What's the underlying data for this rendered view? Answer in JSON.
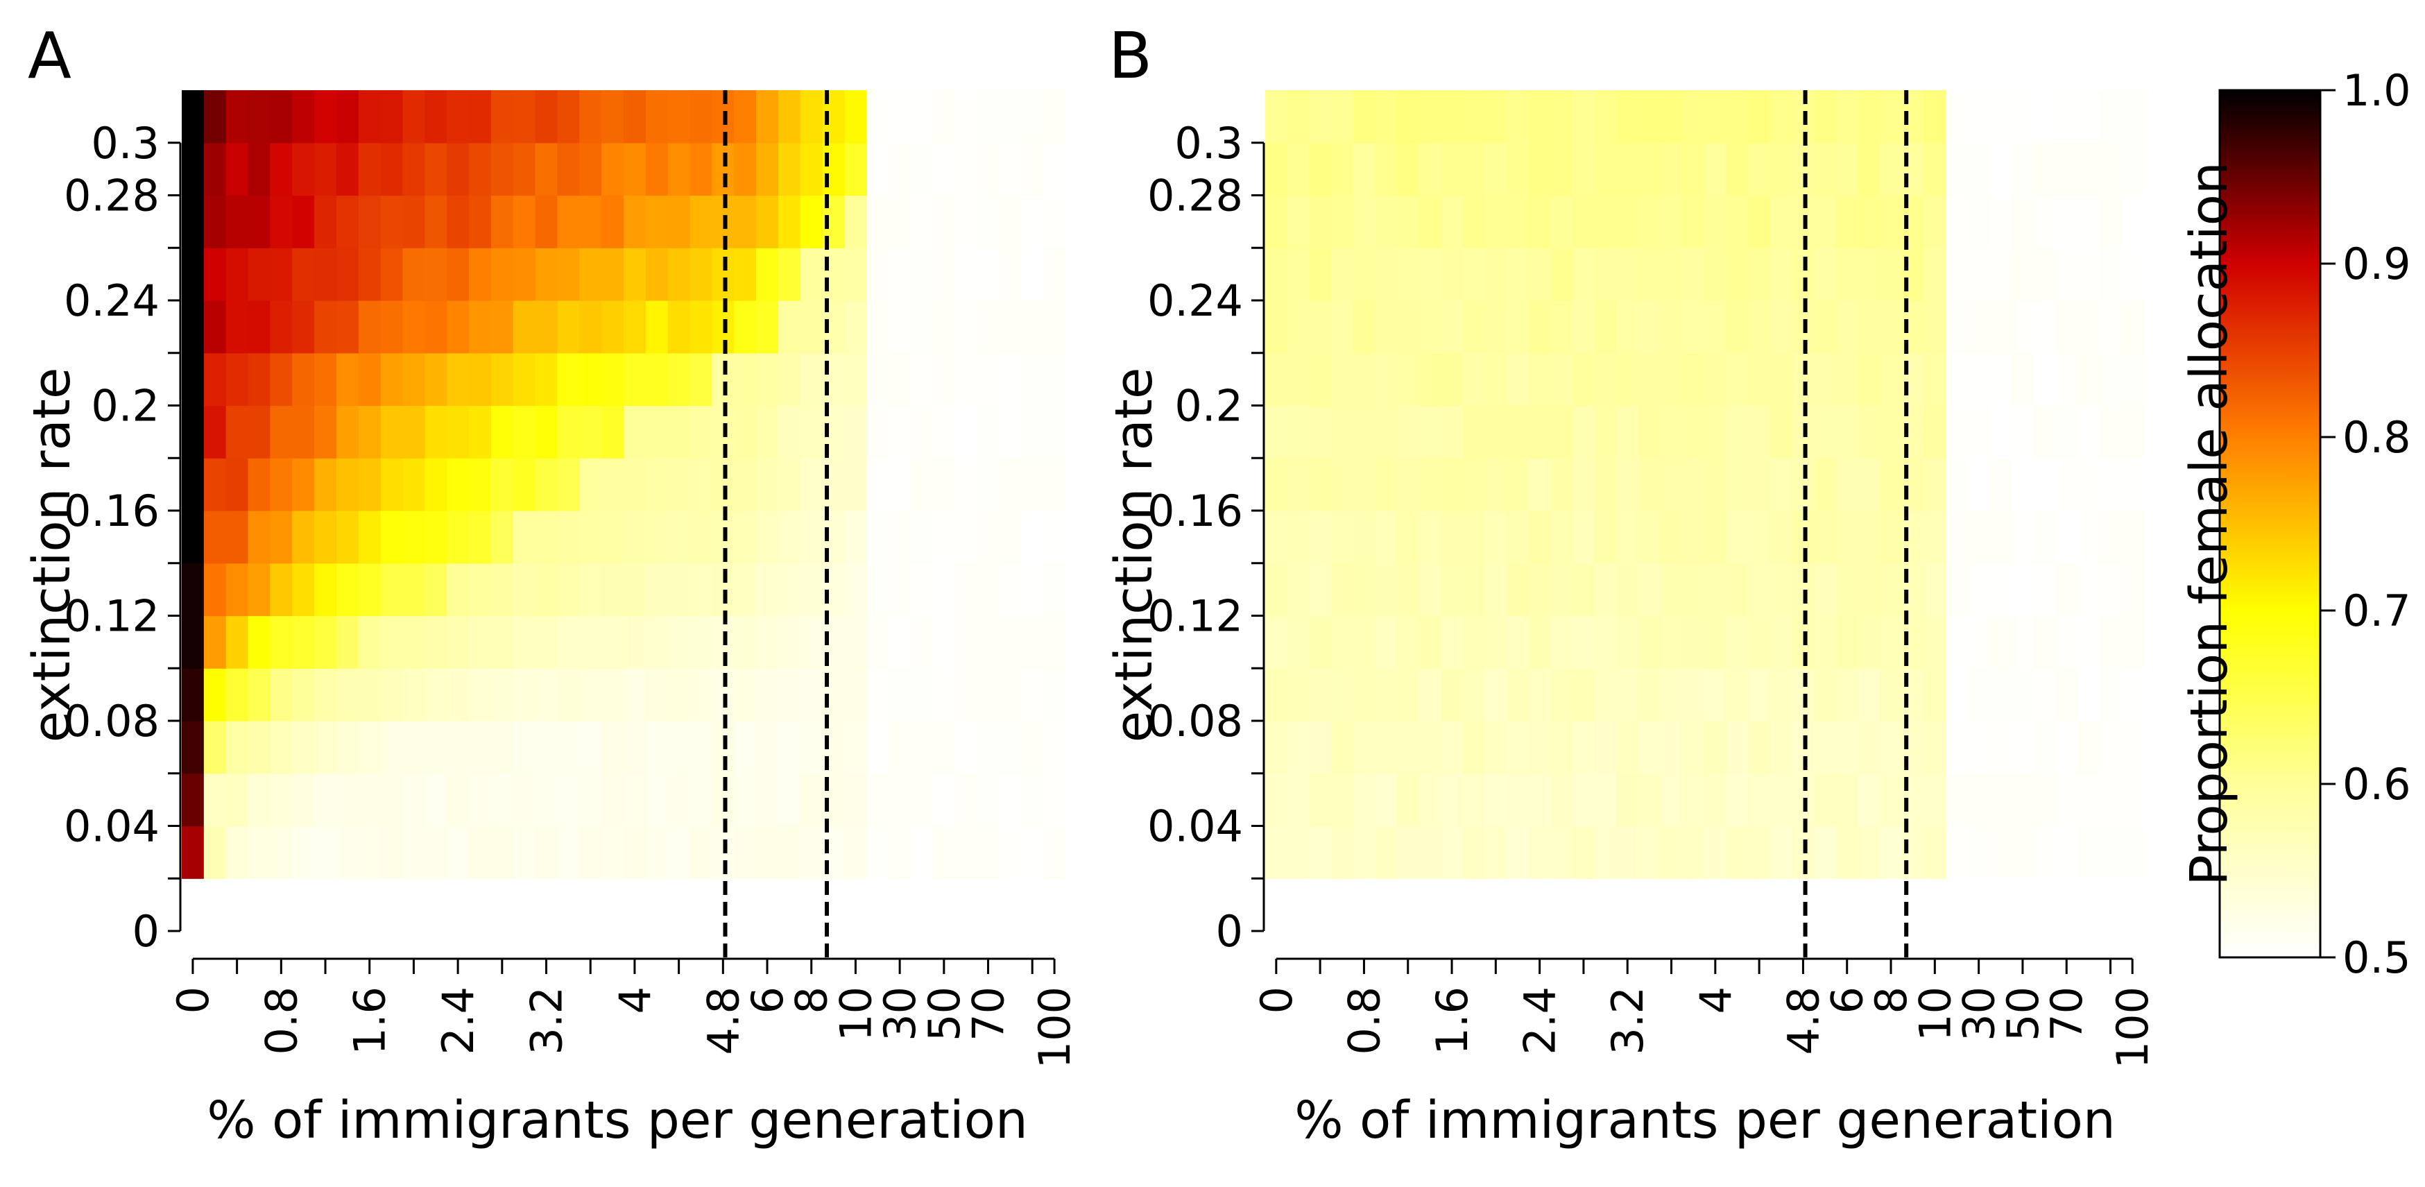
{
  "panels": [
    {
      "label": "A",
      "ylabel": "extinction rate",
      "xlabel": "% of immigrants per generation",
      "yticks": [
        "0",
        "0.04",
        "0.08",
        "0.12",
        "0.16",
        "0.2",
        "0.24",
        "0.28",
        "0.3"
      ],
      "xticks": [
        "0",
        "0.8",
        "1.6",
        "2.4",
        "3.2",
        "4",
        "4.8",
        "6",
        "8",
        "10",
        "30",
        "50",
        "70",
        "100"
      ]
    },
    {
      "label": "B",
      "ylabel": "extinction rate",
      "xlabel": "% of immigrants per generation",
      "yticks": [
        "0",
        "0.04",
        "0.08",
        "0.12",
        "0.16",
        "0.2",
        "0.24",
        "0.28",
        "0.3"
      ],
      "xticks": [
        "0",
        "0.8",
        "1.6",
        "2.4",
        "3.2",
        "4",
        "4.8",
        "6",
        "8",
        "10",
        "30",
        "50",
        "70",
        "100"
      ]
    }
  ],
  "colorbar": {
    "label": "Proportion female allocation",
    "ticks": [
      "1.0",
      "0.9",
      "0.8",
      "0.7",
      "0.6",
      "0.5"
    ],
    "range": [
      0.5,
      1.0
    ]
  },
  "colors": {
    "dashed_line": "#000000",
    "axis": "#000000"
  },
  "chart_data": [
    {
      "type": "heatmap",
      "panel": "A",
      "title": "",
      "xlabel": "% of immigrants per generation",
      "ylabel": "extinction rate",
      "x": [
        0,
        0.2,
        0.4,
        0.6,
        0.8,
        1.0,
        1.2,
        1.4,
        1.6,
        1.8,
        2.0,
        2.2,
        2.4,
        2.6,
        2.8,
        3.0,
        3.2,
        3.4,
        3.6,
        3.8,
        4.0,
        4.2,
        4.4,
        4.6,
        4.8,
        5,
        6,
        7,
        8,
        9,
        10,
        20,
        30,
        40,
        50,
        60,
        70,
        80,
        90,
        100
      ],
      "y": [
        0.02,
        0.04,
        0.06,
        0.08,
        0.1,
        0.12,
        0.14,
        0.16,
        0.18,
        0.2,
        0.22,
        0.24,
        0.26,
        0.28,
        0.3
      ],
      "colorscale_range": [
        0.5,
        1.0
      ],
      "vlines_x": [
        4.5,
        9.5
      ],
      "values_model": {
        "first_column": [
          0.92,
          0.95,
          0.97,
          0.98,
          0.99,
          0.99,
          1.0,
          1.0,
          1.0,
          1.0,
          1.0,
          1.0,
          1.0,
          1.0,
          1.0
        ],
        "peak_near_x0": [
          0.58,
          0.62,
          0.68,
          0.76,
          0.8,
          0.84,
          0.86,
          0.88,
          0.9,
          0.9,
          0.92,
          0.92,
          0.93,
          0.93,
          0.94
        ],
        "edge_x": [
          0.12,
          0.2,
          0.4,
          0.9,
          1.5,
          2.3,
          2.9,
          3.4,
          3.9,
          4.6,
          6.2,
          7.5,
          9.5,
          11,
          12
        ],
        "floor_value": 0.5
      }
    },
    {
      "type": "heatmap",
      "panel": "B",
      "title": "",
      "xlabel": "% of immigrants per generation",
      "ylabel": "extinction rate",
      "x": [
        0,
        0.2,
        0.4,
        0.6,
        0.8,
        1.0,
        1.2,
        1.4,
        1.6,
        1.8,
        2.0,
        2.2,
        2.4,
        2.6,
        2.8,
        3.0,
        3.2,
        3.4,
        3.6,
        3.8,
        4.0,
        4.2,
        4.4,
        4.6,
        4.8,
        5,
        6,
        7,
        8,
        9,
        10,
        20,
        30,
        40,
        50,
        60,
        70,
        80,
        90,
        100
      ],
      "y": [
        0.02,
        0.04,
        0.06,
        0.08,
        0.1,
        0.12,
        0.14,
        0.16,
        0.18,
        0.2,
        0.22,
        0.24,
        0.26,
        0.28,
        0.3
      ],
      "colorscale_range": [
        0.5,
        1.0
      ],
      "vlines_x": [
        4.5,
        9.5
      ],
      "values_model": {
        "low_value": 0.52,
        "high_value": 0.61,
        "floor_value": 0.5
      }
    }
  ]
}
